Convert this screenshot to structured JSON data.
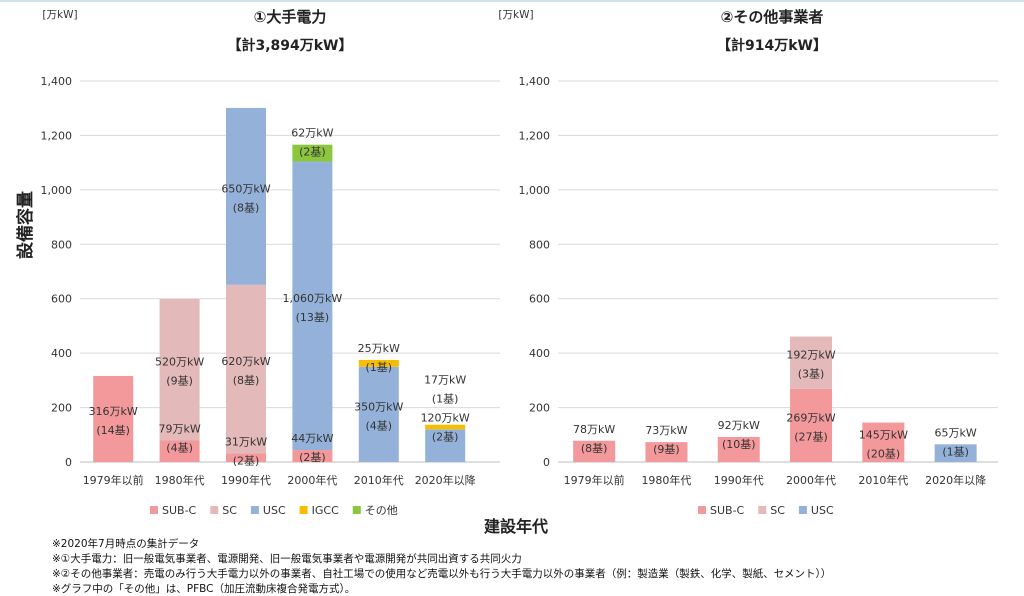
{
  "ylabel": "設備容量",
  "xlabel": "建設年代",
  "notes": [
    "※2020年7月時点の集計データ",
    "※①大手電力：旧一般電気事業者、電源開発、旧一般電気事業者や電源開発が共同出資する共同火力",
    "※②その他事業者：売電のみ行う大手電力以外の事業者、自社工場での使用など売電以外も行う大手電力以外の事業者（例：製造業（製鉄、化学、製紙、セメント））",
    "※グラフ中の「その他」は、PFBC（加圧流動床複合発電方式）。"
  ],
  "colors": {
    "SUB-C": "#f4999b",
    "SC": "#e4b9b9",
    "USC": "#94b2d9",
    "IGCC": "#f7bd00",
    "その他": "#8cc63f"
  },
  "chart_data": [
    {
      "type": "bar",
      "stacked": true,
      "title": "①大手電力",
      "subtitle": "【計3,894万kW】",
      "unit": "[万kW]",
      "ylim": [
        0,
        1400
      ],
      "yticks": [
        "0",
        "200",
        "400",
        "600",
        "800",
        "1,000",
        "1,200",
        "1,400"
      ],
      "categories": [
        "1979年以前",
        "1980年代",
        "1990年代",
        "2000年代",
        "2010年代",
        "2020年以降"
      ],
      "legend_position": "bottom",
      "series": [
        {
          "name": "SUB-C",
          "values": [
            316,
            79,
            31,
            44,
            0,
            0
          ],
          "labels": [
            [
              "316万kW",
              "(14基)"
            ],
            [
              "79万kW",
              "(4基)"
            ],
            [
              "31万kW",
              "(2基)"
            ],
            [
              "44万kW",
              "(2基)"
            ],
            null,
            null
          ]
        },
        {
          "name": "SC",
          "values": [
            0,
            520,
            620,
            0,
            0,
            0
          ],
          "labels": [
            null,
            [
              "520万kW",
              "(9基)"
            ],
            [
              "620万kW",
              "(8基)"
            ],
            null,
            null,
            null
          ]
        },
        {
          "name": "USC",
          "values": [
            0,
            0,
            650,
            1060,
            350,
            120
          ],
          "labels": [
            null,
            null,
            [
              "650万kW",
              "(8基)"
            ],
            [
              "1,060万kW",
              "(13基)"
            ],
            [
              "350万kW",
              "(4基)"
            ],
            [
              "120万kW",
              "(2基)"
            ]
          ]
        },
        {
          "name": "IGCC",
          "values": [
            0,
            0,
            0,
            0,
            25,
            17
          ],
          "labels": [
            null,
            null,
            null,
            null,
            [
              "25万kW",
              "(1基)"
            ],
            [
              "17万kW",
              "(1基)"
            ]
          ]
        },
        {
          "name": "その他",
          "values": [
            0,
            0,
            0,
            62,
            0,
            0
          ],
          "labels": [
            null,
            null,
            null,
            [
              "62万kW",
              "(2基)"
            ],
            null,
            null
          ]
        }
      ]
    },
    {
      "type": "bar",
      "stacked": true,
      "title": "②その他事業者",
      "subtitle": "【計914万kW】",
      "unit": "[万kW]",
      "ylim": [
        0,
        1400
      ],
      "yticks": [
        "0",
        "200",
        "400",
        "600",
        "800",
        "1,000",
        "1,200",
        "1,400"
      ],
      "categories": [
        "1979年以前",
        "1980年代",
        "1990年代",
        "2000年代",
        "2010年代",
        "2020年以降"
      ],
      "legend_position": "bottom",
      "series": [
        {
          "name": "SUB-C",
          "values": [
            78,
            73,
            92,
            269,
            145,
            0
          ],
          "labels": [
            [
              "78万kW",
              "(8基)"
            ],
            [
              "73万kW",
              "(9基)"
            ],
            [
              "92万kW",
              "(10基)"
            ],
            [
              "269万kW",
              "(27基)"
            ],
            [
              "145万kW",
              "(20基)"
            ],
            null
          ]
        },
        {
          "name": "SC",
          "values": [
            0,
            0,
            0,
            192,
            0,
            0
          ],
          "labels": [
            null,
            null,
            null,
            [
              "192万kW",
              "(3基)"
            ],
            null,
            null
          ]
        },
        {
          "name": "USC",
          "values": [
            0,
            0,
            0,
            0,
            0,
            65
          ],
          "labels": [
            null,
            null,
            null,
            null,
            null,
            [
              "65万kW",
              "(1基)"
            ]
          ]
        }
      ]
    }
  ]
}
